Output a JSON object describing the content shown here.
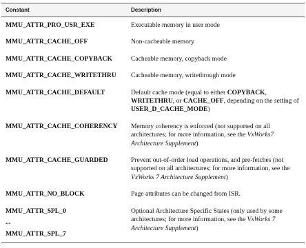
{
  "table": {
    "header": [
      "Constant",
      "Description"
    ],
    "rows": [
      {
        "constant": [
          "MMU_ATTR_PRO_USR_EXE"
        ],
        "description": [
          {
            "text": "Executable memory in user mode"
          }
        ]
      },
      {
        "constant": [
          "MMU_ATTR_CACHE_OFF"
        ],
        "description": [
          {
            "text": "Non-cacheable memory"
          }
        ]
      },
      {
        "constant": [
          "MMU_ATTR_CACHE_COPYBACK"
        ],
        "description": [
          {
            "text": "Cacheable memory, copyback mode"
          }
        ]
      },
      {
        "constant": [
          "MMU_ATTR_CACHE_WRITETHRU"
        ],
        "description": [
          {
            "text": "Cacheable memory, writethrough mode"
          }
        ]
      },
      {
        "constant": [
          "MMU_ATTR_CACHE_DEFAULT"
        ],
        "description": [
          {
            "text": "Default cache mode (equal to either "
          },
          {
            "text": "COPYBACK",
            "style": "bold"
          },
          {
            "text": ", "
          },
          {
            "text": "WRITETHRU",
            "style": "bold"
          },
          {
            "text": ", or "
          },
          {
            "text": "CACHE_OFF",
            "style": "bold"
          },
          {
            "text": ", depending on the setting of "
          },
          {
            "text": "USER_D_CACHE_MODE",
            "style": "bold"
          },
          {
            "text": ")"
          }
        ]
      },
      {
        "constant": [
          "MMU_ATTR_CACHE_COHERENCY"
        ],
        "description": [
          {
            "text": "Memory coherency is enforced (not supported on all architectures; for more information, see the "
          },
          {
            "text": "VxWorks7 Architecture Supplement",
            "style": "italic"
          },
          {
            "text": ")"
          }
        ]
      },
      {
        "constant": [
          "MMU_ATTR_CACHE_GUARDED"
        ],
        "description": [
          {
            "text": "Prevent out-of-order load operations, and pre-fetches (not supported on all architectures; for more information, see the "
          },
          {
            "text": "VxWorks 7 Architecture Supplement",
            "style": "italic"
          },
          {
            "text": ")"
          }
        ]
      },
      {
        "constant": [
          "MMU_ATTR_NO_BLOCK"
        ],
        "description": [
          {
            "text": "Page attributes can be changed from ISR."
          }
        ]
      },
      {
        "constant": [
          "MMU_ATTR_SPL_0",
          "...",
          "MMU_ATTR_SPL_7"
        ],
        "description": [
          {
            "text": "Optional Architecture Specific States (only used by some architectures; for more information, see the "
          },
          {
            "text": "VxWorks 7 Architecture Supplement",
            "style": "italic"
          },
          {
            "text": ")"
          }
        ]
      }
    ]
  }
}
